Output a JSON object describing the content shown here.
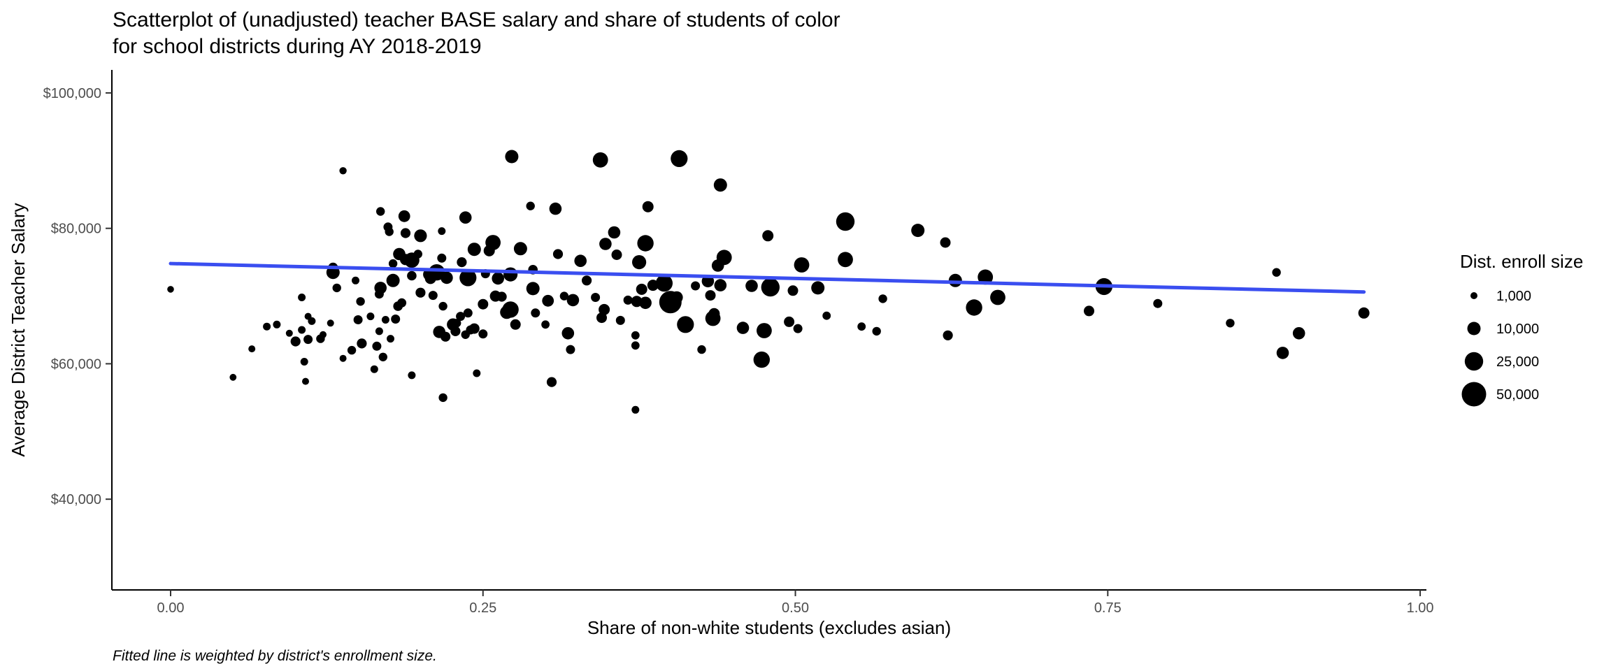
{
  "chart_data": {
    "type": "scatter",
    "title_lines": [
      "Scatterplot of (unadjusted) teacher BASE salary and share of students of color",
      "for school districts during AY 2018-2019"
    ],
    "xlabel": "Share of non-white students (excludes asian)",
    "ylabel": "Average District Teacher Salary",
    "caption": "Fitted line is weighted by district's enrollment size.",
    "xlim": [
      -0.047,
      1.005
    ],
    "ylim": [
      26600,
      103400
    ],
    "x_ticks": [
      0,
      0.25,
      0.5,
      0.75,
      1
    ],
    "x_tick_labels": [
      "0.00",
      "0.25",
      "0.50",
      "0.75",
      "1.00"
    ],
    "y_ticks": [
      40000,
      60000,
      80000,
      100000
    ],
    "y_tick_labels": [
      "$40,000",
      "$60,000",
      "$80,000",
      "$100,000"
    ],
    "grid": false,
    "point_color": "#000000",
    "line_color": "#3A4EF0",
    "fit_line": {
      "x": [
        0,
        0.955
      ],
      "y": [
        74800,
        70600
      ]
    },
    "legend": {
      "title": "Dist. enroll size",
      "placement": "right",
      "entries": [
        {
          "label": "1,000",
          "size": 1000
        },
        {
          "label": "10,000",
          "size": 10000
        },
        {
          "label": "25,000",
          "size": 25000
        },
        {
          "label": "50,000",
          "size": 50000
        }
      ]
    },
    "points": [
      [
        0.0,
        71000,
        800
      ],
      [
        0.05,
        58000,
        900
      ],
      [
        0.065,
        62200,
        1000
      ],
      [
        0.077,
        65500,
        1500
      ],
      [
        0.085,
        65800,
        1500
      ],
      [
        0.095,
        64500,
        1000
      ],
      [
        0.1,
        63300,
        4000
      ],
      [
        0.105,
        65000,
        1500
      ],
      [
        0.105,
        69800,
        1500
      ],
      [
        0.107,
        60300,
        1500
      ],
      [
        0.108,
        57400,
        1000
      ],
      [
        0.11,
        67000,
        1000
      ],
      [
        0.11,
        63600,
        3000
      ],
      [
        0.113,
        66300,
        1500
      ],
      [
        0.12,
        63700,
        2500
      ],
      [
        0.122,
        64300,
        1000
      ],
      [
        0.128,
        66000,
        1000
      ],
      [
        0.13,
        73500,
        10000
      ],
      [
        0.13,
        74200,
        4000
      ],
      [
        0.133,
        71200,
        2500
      ],
      [
        0.138,
        60800,
        1000
      ],
      [
        0.138,
        88500,
        1200
      ],
      [
        0.145,
        62000,
        2500
      ],
      [
        0.148,
        72300,
        1500
      ],
      [
        0.15,
        66500,
        3000
      ],
      [
        0.152,
        69200,
        2500
      ],
      [
        0.153,
        63000,
        4000
      ],
      [
        0.16,
        67000,
        1500
      ],
      [
        0.163,
        59200,
        1500
      ],
      [
        0.165,
        62600,
        3000
      ],
      [
        0.167,
        64800,
        1500
      ],
      [
        0.167,
        70300,
        3000
      ],
      [
        0.168,
        82500,
        2500
      ],
      [
        0.168,
        71200,
        8000
      ],
      [
        0.17,
        61000,
        2500
      ],
      [
        0.172,
        66500,
        1500
      ],
      [
        0.174,
        80200,
        3000
      ],
      [
        0.175,
        79500,
        2500
      ],
      [
        0.176,
        63700,
        1500
      ],
      [
        0.178,
        74800,
        2500
      ],
      [
        0.178,
        72300,
        10000
      ],
      [
        0.18,
        66600,
        3000
      ],
      [
        0.182,
        68500,
        3500
      ],
      [
        0.183,
        76200,
        8000
      ],
      [
        0.185,
        69000,
        3000
      ],
      [
        0.187,
        81800,
        7000
      ],
      [
        0.188,
        79300,
        4000
      ],
      [
        0.188,
        75400,
        6000
      ],
      [
        0.193,
        75300,
        15000
      ],
      [
        0.193,
        73000,
        3500
      ],
      [
        0.193,
        58300,
        1500
      ],
      [
        0.198,
        76200,
        2500
      ],
      [
        0.2,
        78900,
        9000
      ],
      [
        0.2,
        70500,
        4000
      ],
      [
        0.207,
        73200,
        8000
      ],
      [
        0.208,
        72600,
        6000
      ],
      [
        0.21,
        70100,
        3000
      ],
      [
        0.212,
        73800,
        3000
      ],
      [
        0.213,
        73500,
        18000
      ],
      [
        0.215,
        64700,
        8000
      ],
      [
        0.217,
        75600,
        3000
      ],
      [
        0.217,
        79600,
        1500
      ],
      [
        0.218,
        55000,
        2500
      ],
      [
        0.218,
        68500,
        2500
      ],
      [
        0.22,
        64000,
        4000
      ],
      [
        0.221,
        72700,
        8000
      ],
      [
        0.226,
        65800,
        8000
      ],
      [
        0.228,
        64800,
        4000
      ],
      [
        0.229,
        66000,
        2500
      ],
      [
        0.232,
        67000,
        3000
      ],
      [
        0.233,
        75000,
        4000
      ],
      [
        0.236,
        81600,
        8000
      ],
      [
        0.236,
        64300,
        2500
      ],
      [
        0.238,
        72700,
        20000
      ],
      [
        0.238,
        67500,
        3000
      ],
      [
        0.24,
        65000,
        3000
      ],
      [
        0.243,
        76900,
        10000
      ],
      [
        0.243,
        65200,
        5000
      ],
      [
        0.245,
        58600,
        1500
      ],
      [
        0.25,
        64400,
        3000
      ],
      [
        0.25,
        68800,
        5000
      ],
      [
        0.252,
        73300,
        3000
      ],
      [
        0.255,
        76700,
        6000
      ],
      [
        0.258,
        77900,
        15000
      ],
      [
        0.26,
        70000,
        6000
      ],
      [
        0.262,
        72600,
        8000
      ],
      [
        0.265,
        69900,
        4000
      ],
      [
        0.269,
        67600,
        10000
      ],
      [
        0.272,
        73200,
        12000
      ],
      [
        0.272,
        68000,
        18000
      ],
      [
        0.273,
        90600,
        10000
      ],
      [
        0.276,
        65800,
        5000
      ],
      [
        0.28,
        77000,
        10000
      ],
      [
        0.288,
        83300,
        2500
      ],
      [
        0.29,
        73900,
        3500
      ],
      [
        0.29,
        71100,
        10000
      ],
      [
        0.292,
        67500,
        3000
      ],
      [
        0.3,
        65800,
        2000
      ],
      [
        0.302,
        69300,
        7000
      ],
      [
        0.305,
        57300,
        4000
      ],
      [
        0.308,
        82900,
        8000
      ],
      [
        0.31,
        76200,
        4000
      ],
      [
        0.315,
        70000,
        2500
      ],
      [
        0.318,
        64500,
        8000
      ],
      [
        0.32,
        62100,
        3000
      ],
      [
        0.322,
        69400,
        8000
      ],
      [
        0.328,
        75200,
        8000
      ],
      [
        0.333,
        72300,
        4000
      ],
      [
        0.34,
        69800,
        3000
      ],
      [
        0.344,
        90100,
        15000
      ],
      [
        0.345,
        66800,
        5000
      ],
      [
        0.347,
        68000,
        6000
      ],
      [
        0.348,
        77700,
        8000
      ],
      [
        0.355,
        79400,
        8000
      ],
      [
        0.357,
        76100,
        5000
      ],
      [
        0.36,
        66400,
        3000
      ],
      [
        0.366,
        69400,
        3000
      ],
      [
        0.372,
        64200,
        2000
      ],
      [
        0.372,
        62700,
        2000
      ],
      [
        0.372,
        53200,
        1500
      ],
      [
        0.373,
        69200,
        6000
      ],
      [
        0.375,
        75000,
        12000
      ],
      [
        0.377,
        71000,
        6000
      ],
      [
        0.38,
        77800,
        18000
      ],
      [
        0.38,
        69000,
        8000
      ],
      [
        0.382,
        83200,
        6000
      ],
      [
        0.386,
        71600,
        6000
      ],
      [
        0.395,
        71900,
        20000
      ],
      [
        0.4,
        69100,
        40000
      ],
      [
        0.405,
        69800,
        8000
      ],
      [
        0.407,
        90300,
        20000
      ],
      [
        0.412,
        65800,
        20000
      ],
      [
        0.42,
        71500,
        3000
      ],
      [
        0.425,
        62100,
        2500
      ],
      [
        0.43,
        72200,
        8000
      ],
      [
        0.432,
        70100,
        5000
      ],
      [
        0.434,
        66700,
        15000
      ],
      [
        0.435,
        67400,
        6000
      ],
      [
        0.438,
        74500,
        8000
      ],
      [
        0.44,
        86400,
        10000
      ],
      [
        0.44,
        71600,
        8000
      ],
      [
        0.443,
        75700,
        15000
      ],
      [
        0.458,
        65300,
        8000
      ],
      [
        0.465,
        71500,
        8000
      ],
      [
        0.473,
        60600,
        18000
      ],
      [
        0.475,
        64900,
        15000
      ],
      [
        0.478,
        78900,
        6000
      ],
      [
        0.48,
        71300,
        25000
      ],
      [
        0.495,
        66200,
        5000
      ],
      [
        0.498,
        70800,
        5000
      ],
      [
        0.502,
        65200,
        3000
      ],
      [
        0.505,
        74600,
        15000
      ],
      [
        0.518,
        71200,
        10000
      ],
      [
        0.525,
        67100,
        2000
      ],
      [
        0.54,
        81000,
        25000
      ],
      [
        0.54,
        75400,
        15000
      ],
      [
        0.553,
        65500,
        2000
      ],
      [
        0.565,
        64800,
        2500
      ],
      [
        0.57,
        69600,
        2500
      ],
      [
        0.598,
        79700,
        10000
      ],
      [
        0.62,
        77900,
        5000
      ],
      [
        0.622,
        64200,
        4000
      ],
      [
        0.628,
        72300,
        10000
      ],
      [
        0.643,
        68300,
        18000
      ],
      [
        0.652,
        72800,
        15000
      ],
      [
        0.662,
        69800,
        15000
      ],
      [
        0.735,
        67800,
        5000
      ],
      [
        0.747,
        71400,
        20000
      ],
      [
        0.79,
        68900,
        3000
      ],
      [
        0.848,
        66000,
        2500
      ],
      [
        0.885,
        73500,
        2500
      ],
      [
        0.89,
        61600,
        8000
      ],
      [
        0.903,
        64500,
        8000
      ],
      [
        0.955,
        67500,
        6000
      ]
    ]
  }
}
